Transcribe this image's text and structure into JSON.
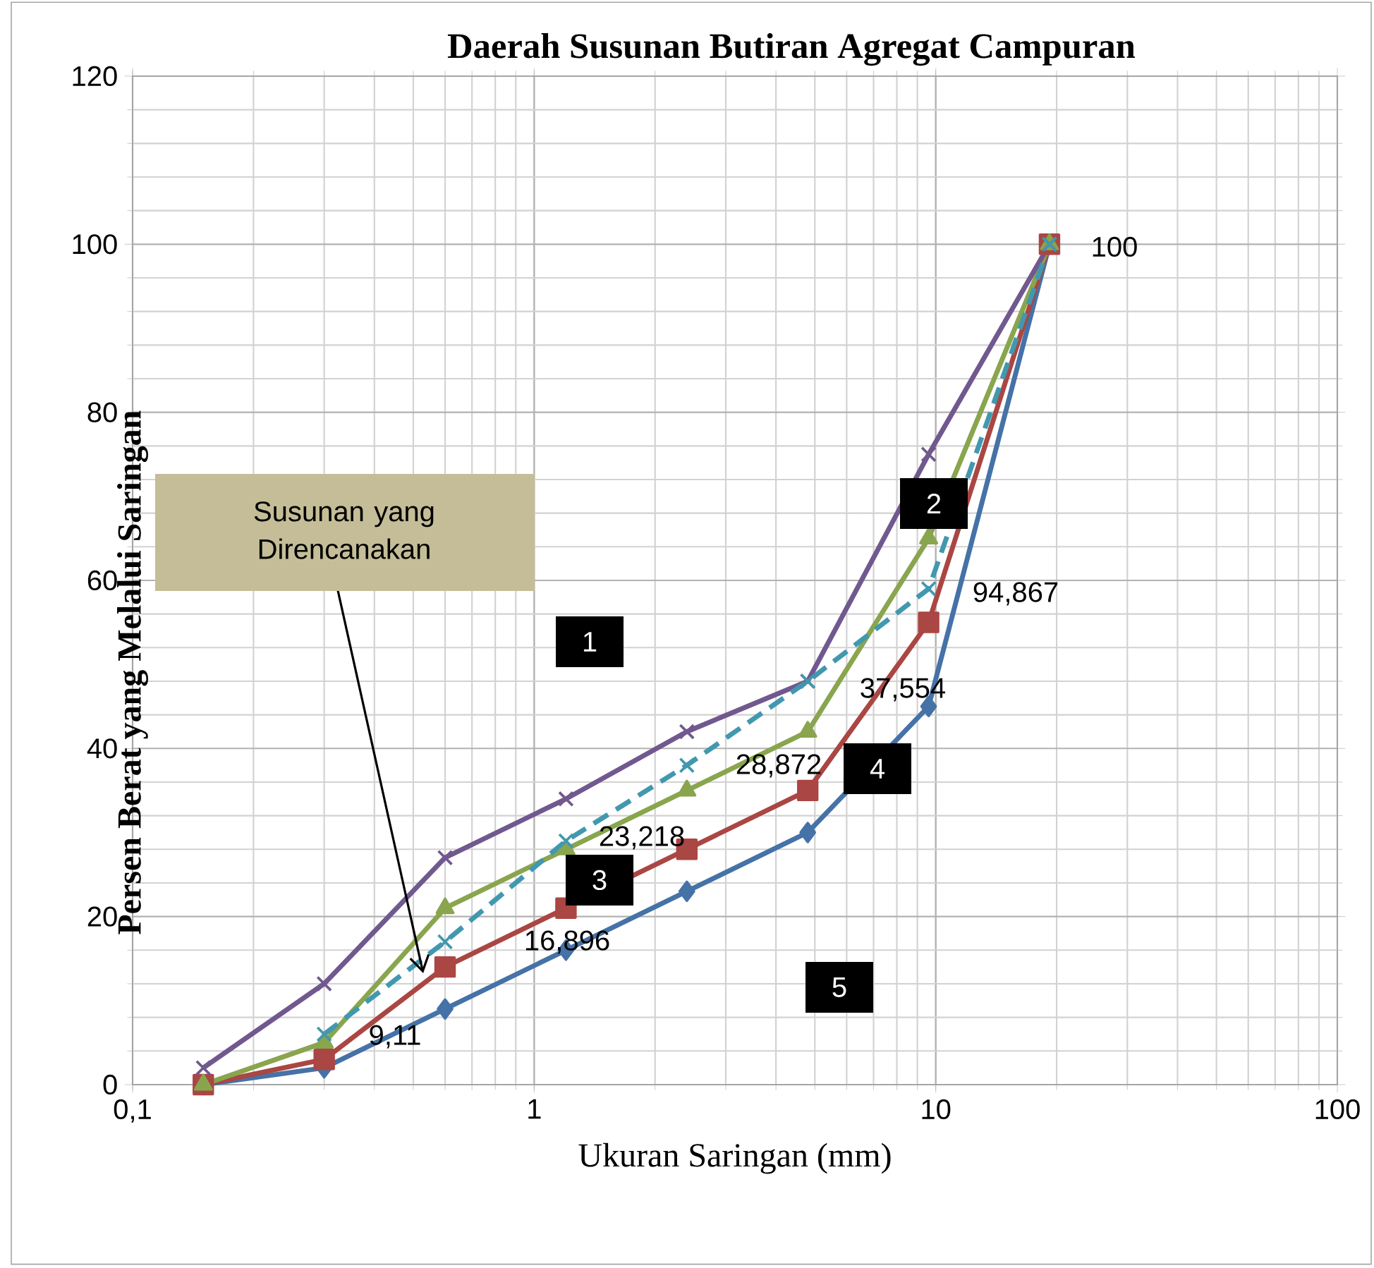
{
  "chart_data": {
    "type": "line",
    "title": "Daerah Susunan Butiran Agregat Campuran",
    "xlabel": "Ukuran Saringan (mm)",
    "ylabel": "Persen Berat yang Melalui Saringan",
    "log": "x",
    "grid": true,
    "xlim": [
      0.1,
      100
    ],
    "xticks": [
      {
        "value": 0.1,
        "label": "0,1"
      },
      1,
      10,
      100
    ],
    "ylim": [
      0,
      120
    ],
    "yticks": [
      0,
      20,
      40,
      60,
      80,
      100,
      120
    ],
    "x": [
      0.15,
      0.3,
      0.6,
      1.2,
      2.4,
      4.8,
      9.6,
      19.2
    ],
    "series": [
      {
        "color": "#4572a7",
        "marker": "diamond",
        "values": [
          0,
          2,
          9,
          16,
          23,
          30,
          45,
          100
        ]
      },
      {
        "color": "#aa4643",
        "marker": "square",
        "values": [
          0,
          3,
          14,
          21,
          28,
          35,
          55,
          100
        ]
      },
      {
        "color": "#89a54e",
        "marker": "triangle",
        "values": [
          0,
          5,
          21,
          28,
          35,
          42,
          65,
          100
        ]
      },
      {
        "color": "#71588f",
        "marker": "cross",
        "values": [
          2,
          12,
          27,
          34,
          42,
          48,
          75,
          100
        ]
      },
      {
        "color": "#4198af",
        "marker": "cross",
        "line_style": "dashed",
        "values": [
          null,
          6,
          17,
          29,
          38,
          48,
          59,
          100
        ]
      }
    ],
    "annotations": [
      "9,11",
      "16,896",
      "23,218",
      "28,872",
      "37,554",
      "94,867",
      "100",
      "1",
      "2",
      "3",
      "4",
      "5",
      "Susunan yang Direncanakan"
    ]
  }
}
